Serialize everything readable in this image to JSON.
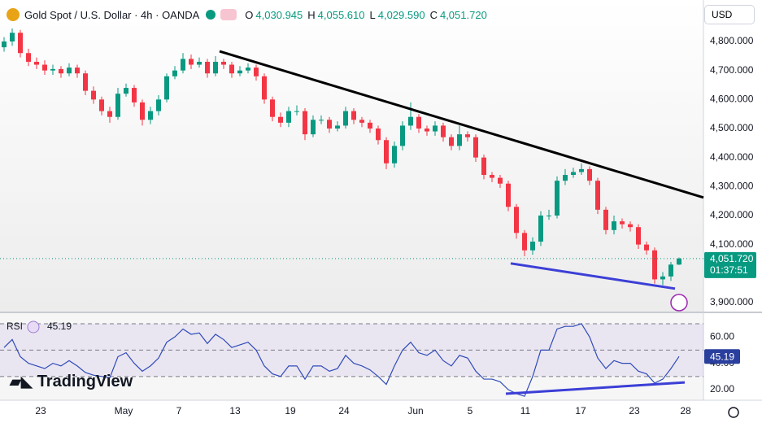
{
  "header": {
    "symbol": "Gold Spot / U.S. Dollar · 4h · OANDA",
    "o_label": "O",
    "open": "4,030.945",
    "h_label": "H",
    "high": "4,055.610",
    "l_label": "L",
    "low": "4,029.590",
    "c_label": "C",
    "close": "4,051.720",
    "currency": "USD",
    "brand": "TradingView"
  },
  "chart_data": [
    {
      "type": "candlestick",
      "up_color": "#089981",
      "down_color": "#f23645",
      "xlim": [
        -0.5,
        86
      ],
      "xticks": [
        {
          "value": 4.5,
          "label": "23"
        },
        {
          "value": 14.7,
          "label": "May"
        },
        {
          "value": 21.5,
          "label": "7"
        },
        {
          "value": 28.4,
          "label": "13"
        },
        {
          "value": 35.2,
          "label": "19"
        },
        {
          "value": 41.8,
          "label": "24"
        },
        {
          "value": 50.6,
          "label": "Jun"
        },
        {
          "value": 57.3,
          "label": "5"
        },
        {
          "value": 64.1,
          "label": "11"
        },
        {
          "value": 70.9,
          "label": "17"
        },
        {
          "value": 77.5,
          "label": "23"
        },
        {
          "value": 83.8,
          "label": "28"
        }
      ],
      "ylim": [
        3869,
        4943
      ],
      "yticks": [
        {
          "value": 3900,
          "label": "3,900.000"
        },
        {
          "value": 4100,
          "label": "4,100.000"
        },
        {
          "value": 4200,
          "label": "4,200.000"
        },
        {
          "value": 4300,
          "label": "4,300.000"
        },
        {
          "value": 4400,
          "label": "4,400.000"
        },
        {
          "value": 4500,
          "label": "4,500.000"
        },
        {
          "value": 4600,
          "label": "4,600.000"
        },
        {
          "value": 4700,
          "label": "4,700.000"
        },
        {
          "value": 4800,
          "label": "4,800.000"
        }
      ],
      "open": [
        4780,
        4800,
        4830,
        4760,
        4730,
        4720,
        4700,
        4705,
        4690,
        4710,
        4690,
        4630,
        4600,
        4560,
        4540,
        4620,
        4640,
        4590,
        4530,
        4560,
        4600,
        4680,
        4700,
        4740,
        4720,
        4730,
        4690,
        4730,
        4720,
        4690,
        4700,
        4710,
        4680,
        4600,
        4540,
        4520,
        4560,
        4560,
        4480,
        4530,
        4530,
        4500,
        4510,
        4560,
        4530,
        4520,
        4500,
        4460,
        4380,
        4440,
        4510,
        4540,
        4500,
        4490,
        4510,
        4470,
        4440,
        4480,
        4470,
        4400,
        4340,
        4330,
        4310,
        4230,
        4140,
        4080,
        4110,
        4200,
        4200,
        4320,
        4340,
        4350,
        4360,
        4320,
        4220,
        4150,
        4180,
        4170,
        4160,
        4100,
        4080,
        3980,
        3990,
        4030.945
      ],
      "high": [
        4815,
        4845,
        4840,
        4775,
        4745,
        4735,
        4720,
        4715,
        4725,
        4720,
        4700,
        4645,
        4610,
        4575,
        4640,
        4655,
        4650,
        4600,
        4575,
        4615,
        4690,
        4715,
        4760,
        4755,
        4745,
        4740,
        4750,
        4740,
        4730,
        4715,
        4725,
        4720,
        4690,
        4610,
        4555,
        4575,
        4580,
        4570,
        4545,
        4545,
        4540,
        4525,
        4575,
        4570,
        4540,
        4530,
        4510,
        4470,
        4455,
        4525,
        4590,
        4550,
        4510,
        4525,
        4520,
        4480,
        4510,
        4490,
        4480,
        4410,
        4350,
        4340,
        4320,
        4240,
        4150,
        4125,
        4215,
        4220,
        4335,
        4360,
        4365,
        4380,
        4370,
        4330,
        4230,
        4200,
        4190,
        4180,
        4170,
        4110,
        4090,
        4005,
        4040,
        4055.61
      ],
      "low": [
        4765,
        4785,
        4745,
        4715,
        4705,
        4685,
        4685,
        4675,
        4680,
        4675,
        4615,
        4585,
        4545,
        4520,
        4530,
        4610,
        4575,
        4510,
        4515,
        4545,
        4590,
        4670,
        4690,
        4705,
        4710,
        4675,
        4680,
        4705,
        4675,
        4680,
        4690,
        4665,
        4585,
        4525,
        4505,
        4505,
        4545,
        4460,
        4470,
        4515,
        4485,
        4490,
        4500,
        4515,
        4505,
        4485,
        4445,
        4360,
        4365,
        4425,
        4495,
        4485,
        4475,
        4475,
        4455,
        4425,
        4425,
        4455,
        4385,
        4325,
        4315,
        4295,
        4215,
        4120,
        4060,
        4065,
        4095,
        4185,
        4190,
        4305,
        4330,
        4340,
        4305,
        4205,
        4135,
        4135,
        4155,
        4145,
        4085,
        4065,
        3965,
        3960,
        3975,
        4029.59
      ],
      "close": [
        4800,
        4830,
        4760,
        4730,
        4720,
        4700,
        4705,
        4690,
        4710,
        4690,
        4630,
        4600,
        4560,
        4540,
        4620,
        4640,
        4590,
        4530,
        4560,
        4600,
        4680,
        4700,
        4740,
        4720,
        4730,
        4690,
        4730,
        4720,
        4690,
        4700,
        4710,
        4680,
        4600,
        4540,
        4520,
        4560,
        4560,
        4480,
        4530,
        4530,
        4500,
        4510,
        4560,
        4530,
        4520,
        4500,
        4460,
        4380,
        4440,
        4510,
        4540,
        4500,
        4490,
        4510,
        4470,
        4440,
        4480,
        4470,
        4400,
        4340,
        4330,
        4310,
        4230,
        4140,
        4080,
        4110,
        4200,
        4200,
        4320,
        4340,
        4350,
        4360,
        4320,
        4220,
        4150,
        4180,
        4170,
        4160,
        4100,
        4080,
        3980,
        3990,
        4030.945,
        4051.72
      ],
      "last_price_label": "4,051.720",
      "countdown": "01:37:51",
      "trendlines": [
        {
          "x": [
            26.5,
            86.5
          ],
          "y": [
            4766,
            4262
          ],
          "color": "#000000"
        },
        {
          "x": [
            62.3,
            82.5
          ],
          "y": [
            4035,
            3948
          ],
          "color": "#3c3fd6"
        }
      ]
    },
    {
      "type": "line",
      "title": "RSI",
      "value_label": "45.19",
      "color": "#2f4bb8",
      "ylim": [
        12,
        78
      ],
      "yticks": [
        {
          "value": 20,
          "label": "20.00"
        },
        {
          "value": 40,
          "label": "40.00"
        },
        {
          "value": 60,
          "label": "60.00"
        }
      ],
      "levels": [
        30,
        50,
        70
      ],
      "values": [
        52,
        58,
        45,
        40,
        38,
        36,
        40,
        38,
        42,
        38,
        33,
        31,
        30,
        29,
        45,
        48,
        40,
        34,
        38,
        44,
        56,
        60,
        66,
        62,
        63,
        55,
        62,
        58,
        52,
        54,
        56,
        50,
        38,
        32,
        30,
        38,
        38,
        28,
        38,
        38,
        34,
        36,
        46,
        40,
        38,
        35,
        30,
        24,
        38,
        50,
        56,
        48,
        46,
        50,
        42,
        38,
        46,
        44,
        34,
        28,
        28,
        26,
        20,
        17,
        15,
        30,
        50,
        50,
        66,
        68,
        68,
        70,
        60,
        44,
        36,
        42,
        40,
        40,
        34,
        32,
        25,
        28,
        36,
        45.19
      ],
      "trendlines": [
        {
          "x": [
            61.7,
            83.7
          ],
          "y": [
            16.9,
            25.5
          ],
          "color": "#3c3fd6"
        }
      ]
    }
  ]
}
